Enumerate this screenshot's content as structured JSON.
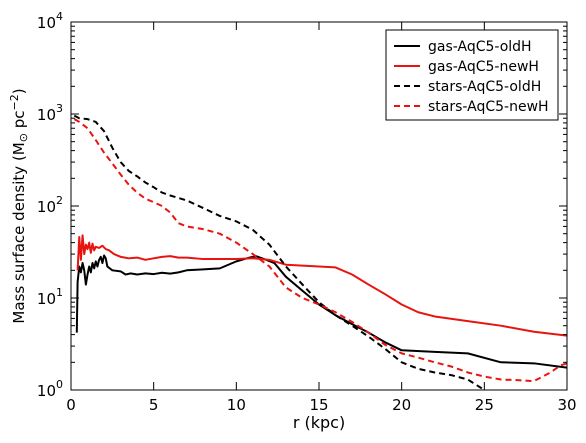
{
  "chart_data": {
    "type": "line",
    "xlabel": "r (kpc)",
    "ylabel": "Mass surface density (M",
    "ylabel_sub": "⊙",
    "ylabel_unit": " pc",
    "ylabel_sup": "−2",
    "ylabel_close": ")",
    "xlim": [
      0,
      30
    ],
    "ylim": [
      1,
      10000
    ],
    "yscale": "log",
    "grid": false,
    "legend_position": "top-right",
    "x_ticks": [
      {
        "value": 0,
        "label": "0"
      },
      {
        "value": 5,
        "label": "5"
      },
      {
        "value": 10,
        "label": "10"
      },
      {
        "value": 15,
        "label": "15"
      },
      {
        "value": 20,
        "label": "20"
      },
      {
        "value": 25,
        "label": "25"
      },
      {
        "value": 30,
        "label": "30"
      }
    ],
    "y_ticks": [
      {
        "value": 1,
        "base": "10",
        "exp": "0"
      },
      {
        "value": 10,
        "base": "10",
        "exp": "1"
      },
      {
        "value": 100,
        "base": "10",
        "exp": "2"
      },
      {
        "value": 1000,
        "base": "10",
        "exp": "3"
      },
      {
        "value": 10000,
        "base": "10",
        "exp": "4"
      }
    ],
    "series": [
      {
        "name": "gas-AqC5-oldH",
        "color": "#000000",
        "dashed": false,
        "points": [
          [
            0.35,
            4.2
          ],
          [
            0.4,
            15
          ],
          [
            0.5,
            22
          ],
          [
            0.6,
            19
          ],
          [
            0.7,
            24
          ],
          [
            0.8,
            20
          ],
          [
            0.9,
            14
          ],
          [
            1.0,
            18
          ],
          [
            1.1,
            22
          ],
          [
            1.2,
            19
          ],
          [
            1.3,
            24
          ],
          [
            1.4,
            21
          ],
          [
            1.5,
            25
          ],
          [
            1.6,
            22
          ],
          [
            1.7,
            26
          ],
          [
            1.8,
            28
          ],
          [
            1.9,
            24
          ],
          [
            2.0,
            29
          ],
          [
            2.1,
            27
          ],
          [
            2.2,
            22
          ],
          [
            2.5,
            20
          ],
          [
            3.0,
            19.5
          ],
          [
            3.3,
            18
          ],
          [
            3.6,
            18.5
          ],
          [
            4.0,
            18
          ],
          [
            4.5,
            18.5
          ],
          [
            5.0,
            18.2
          ],
          [
            5.5,
            18.8
          ],
          [
            6.0,
            18.4
          ],
          [
            6.5,
            19
          ],
          [
            7.0,
            20
          ],
          [
            8.0,
            20.5
          ],
          [
            9.0,
            21
          ],
          [
            10.0,
            25
          ],
          [
            10.8,
            27.5
          ],
          [
            11.2,
            28.5
          ],
          [
            11.8,
            26
          ],
          [
            12.3,
            24
          ],
          [
            13.0,
            17
          ],
          [
            14.0,
            12
          ],
          [
            15.0,
            8.5
          ],
          [
            16.0,
            6.5
          ],
          [
            17.0,
            5.2
          ],
          [
            18.0,
            4.2
          ],
          [
            19.0,
            3.3
          ],
          [
            20.0,
            2.7
          ],
          [
            22.0,
            2.6
          ],
          [
            24.0,
            2.5
          ],
          [
            26.0,
            2.0
          ],
          [
            28.0,
            1.95
          ],
          [
            30.0,
            1.75
          ]
        ]
      },
      {
        "name": "gas-AqC5-newH",
        "color": "#e8140f",
        "dashed": false,
        "points": [
          [
            0.4,
            20
          ],
          [
            0.5,
            46
          ],
          [
            0.6,
            26
          ],
          [
            0.7,
            48
          ],
          [
            0.8,
            30
          ],
          [
            0.9,
            38
          ],
          [
            1.0,
            34
          ],
          [
            1.1,
            40
          ],
          [
            1.2,
            31
          ],
          [
            1.3,
            39
          ],
          [
            1.4,
            33
          ],
          [
            1.5,
            36
          ],
          [
            1.7,
            35
          ],
          [
            1.9,
            37
          ],
          [
            2.1,
            34
          ],
          [
            2.3,
            33
          ],
          [
            2.6,
            30
          ],
          [
            3.0,
            28
          ],
          [
            3.5,
            27
          ],
          [
            4.0,
            27.5
          ],
          [
            4.5,
            26
          ],
          [
            5.0,
            27
          ],
          [
            5.5,
            28
          ],
          [
            6.0,
            28.5
          ],
          [
            6.5,
            27.5
          ],
          [
            7.0,
            27.5
          ],
          [
            8.0,
            26.5
          ],
          [
            9.0,
            26.5
          ],
          [
            10.0,
            26.5
          ],
          [
            11.0,
            27
          ],
          [
            12.0,
            26
          ],
          [
            13.0,
            23
          ],
          [
            14.0,
            22.5
          ],
          [
            15.0,
            22
          ],
          [
            16.0,
            21.5
          ],
          [
            17.0,
            18
          ],
          [
            18.0,
            14
          ],
          [
            19.0,
            11
          ],
          [
            20.0,
            8.5
          ],
          [
            21.0,
            7.0
          ],
          [
            22.0,
            6.3
          ],
          [
            24.0,
            5.6
          ],
          [
            26.0,
            5.0
          ],
          [
            28.0,
            4.3
          ],
          [
            30.0,
            3.9
          ]
        ]
      },
      {
        "name": "stars-AqC5-oldH",
        "color": "#000000",
        "dashed": true,
        "points": [
          [
            0.2,
            960
          ],
          [
            0.5,
            900
          ],
          [
            1.0,
            880
          ],
          [
            1.5,
            820
          ],
          [
            2.0,
            650
          ],
          [
            2.5,
            430
          ],
          [
            3.0,
            300
          ],
          [
            3.5,
            240
          ],
          [
            4.0,
            210
          ],
          [
            4.5,
            180
          ],
          [
            5.0,
            160
          ],
          [
            5.5,
            140
          ],
          [
            6.0,
            130
          ],
          [
            7.0,
            115
          ],
          [
            8.0,
            95
          ],
          [
            9.0,
            78
          ],
          [
            10.0,
            68
          ],
          [
            11.0,
            55
          ],
          [
            12.0,
            38
          ],
          [
            13.0,
            22
          ],
          [
            14.0,
            14
          ],
          [
            15.0,
            9
          ],
          [
            16.0,
            6.5
          ],
          [
            17.0,
            5.0
          ],
          [
            18.0,
            3.8
          ],
          [
            19.0,
            2.8
          ],
          [
            20.0,
            2.0
          ],
          [
            21.0,
            1.7
          ],
          [
            22.0,
            1.55
          ],
          [
            23.0,
            1.45
          ],
          [
            24.0,
            1.3
          ],
          [
            25.0,
            1.0
          ]
        ]
      },
      {
        "name": "stars-AqC5-newH",
        "color": "#e8140f",
        "dashed": true,
        "points": [
          [
            0.2,
            880
          ],
          [
            0.5,
            820
          ],
          [
            1.0,
            700
          ],
          [
            1.5,
            520
          ],
          [
            2.0,
            380
          ],
          [
            2.5,
            290
          ],
          [
            3.0,
            220
          ],
          [
            3.5,
            170
          ],
          [
            4.0,
            140
          ],
          [
            4.5,
            120
          ],
          [
            5.0,
            110
          ],
          [
            5.5,
            100
          ],
          [
            6.0,
            85
          ],
          [
            6.5,
            65
          ],
          [
            7.0,
            60
          ],
          [
            8.0,
            56
          ],
          [
            9.0,
            50
          ],
          [
            10.0,
            40
          ],
          [
            11.0,
            30
          ],
          [
            12.0,
            22
          ],
          [
            13.0,
            13
          ],
          [
            14.0,
            10
          ],
          [
            15.0,
            8.5
          ],
          [
            16.0,
            7
          ],
          [
            17.0,
            5.5
          ],
          [
            18.0,
            4.2
          ],
          [
            19.0,
            3.1
          ],
          [
            20.0,
            2.5
          ],
          [
            21.0,
            2.25
          ],
          [
            22.0,
            2.0
          ],
          [
            23.0,
            1.8
          ],
          [
            24.0,
            1.55
          ],
          [
            25.0,
            1.4
          ],
          [
            26.0,
            1.3
          ],
          [
            27.0,
            1.28
          ],
          [
            28.0,
            1.25
          ],
          [
            29.0,
            1.55
          ],
          [
            29.6,
            1.85
          ],
          [
            30.0,
            1.95
          ]
        ]
      }
    ]
  }
}
